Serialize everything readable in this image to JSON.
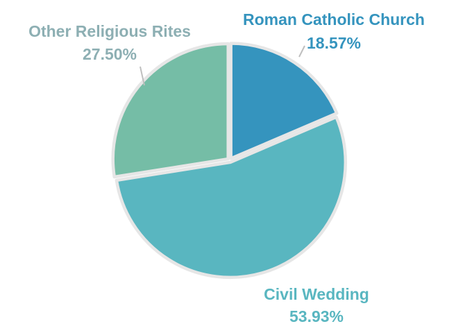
{
  "chart_data": {
    "type": "pie",
    "title": "",
    "start_angle_deg": 0,
    "direction": "clockwise",
    "slices": [
      {
        "label": "Roman Catholic Church",
        "value": 18.57,
        "value_label": "18.57%",
        "color": "#3594BE",
        "label_color": "#3594BE"
      },
      {
        "label": "Civil Wedding",
        "value": 53.93,
        "value_label": "53.93%",
        "color": "#59B6C0",
        "label_color": "#59B6C0"
      },
      {
        "label": "Other Religious Rites",
        "value": 27.5,
        "value_label": "27.50%",
        "color": "#75BDA6",
        "label_color": "#8DAFB3"
      }
    ],
    "leader_line_color": "#BFBFBF",
    "separator_color": "#E6E6E6",
    "legend": "none"
  }
}
